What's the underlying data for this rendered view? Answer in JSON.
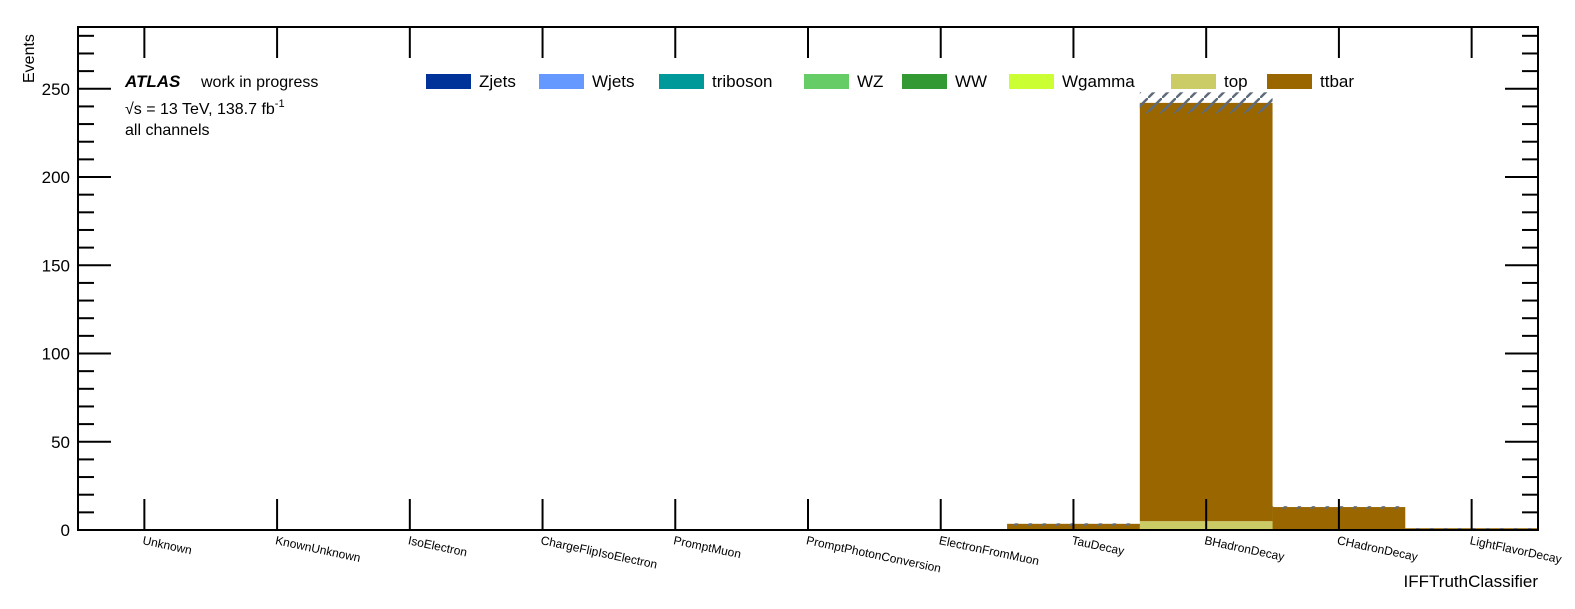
{
  "chart_data": {
    "type": "bar",
    "stacked": true,
    "experiment": "ATLAS",
    "status": "work in progress",
    "energy_sqrt": "s",
    "energy_rest": " = 13 TeV, 138.7 fb",
    "energy_exp": "-1",
    "channel": "all channels",
    "xlabel": "IFFTruthClassifier",
    "ylabel": "Events",
    "ylim": [
      0,
      285
    ],
    "yticks": [
      0,
      50,
      100,
      150,
      200,
      250
    ],
    "categories": [
      "Unknown",
      "KnownUnknown",
      "IsoElectron",
      "ChargeFlipIsoElectron",
      "PromptMuon",
      "PromptPhotonConversion",
      "ElectronFromMuon",
      "TauDecay",
      "BHadronDecay",
      "CHadronDecay",
      "LightFlavorDecay"
    ],
    "legend_position": "top",
    "series": [
      {
        "name": "Zjets",
        "color": "#003399",
        "values": [
          0,
          0,
          0,
          0,
          0,
          0,
          0,
          0,
          0,
          0,
          0
        ]
      },
      {
        "name": "Wjets",
        "color": "#6699ff",
        "values": [
          0,
          0,
          0,
          0,
          0,
          0,
          0,
          0,
          0,
          0,
          0
        ]
      },
      {
        "name": "triboson",
        "color": "#009999",
        "values": [
          0,
          0,
          0,
          0,
          0,
          0,
          0,
          0,
          0,
          0,
          0
        ]
      },
      {
        "name": "WZ",
        "color": "#66cc66",
        "values": [
          0,
          0,
          0,
          0,
          0,
          0,
          0,
          0,
          0,
          0,
          0
        ]
      },
      {
        "name": "WW",
        "color": "#339933",
        "values": [
          0,
          0,
          0,
          0,
          0,
          0,
          0,
          0,
          0,
          0,
          0
        ]
      },
      {
        "name": "Wgamma",
        "color": "#ccff33",
        "values": [
          0,
          0,
          0,
          0,
          0,
          0,
          0,
          0,
          0,
          0,
          0
        ]
      },
      {
        "name": "top",
        "color": "#cccc66",
        "values": [
          0,
          0,
          0,
          0,
          0,
          0,
          0,
          0,
          5,
          0,
          0
        ]
      },
      {
        "name": "ttbar",
        "color": "#996600",
        "values": [
          0,
          0,
          0,
          0,
          0,
          0,
          0,
          3.5,
          237,
          13,
          1
        ]
      }
    ],
    "uncertainty": [
      0,
      0,
      0,
      0,
      0,
      0,
      0,
      0.3,
      6,
      0.5,
      0.1
    ]
  }
}
